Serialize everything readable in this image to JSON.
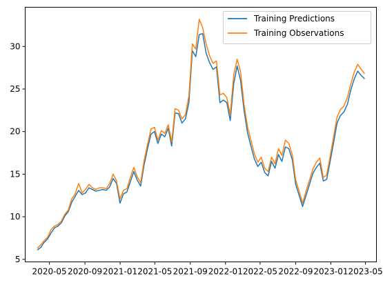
{
  "chart_data": {
    "type": "line",
    "title": "",
    "xlabel": "",
    "ylabel": "",
    "x_ticks": [
      "2020-05",
      "2020-09",
      "2021-01",
      "2021-05",
      "2021-09",
      "2022-01",
      "2022-05",
      "2022-09",
      "2023-01",
      "2023-05"
    ],
    "x_range": [
      "2020-02-07",
      "2023-06-08"
    ],
    "x_start": "2020-03-20",
    "x_end": "2023-04-28",
    "y_ticks": [
      5,
      10,
      15,
      20,
      25,
      30
    ],
    "ylim": [
      4.7,
      34.6
    ],
    "grid": false,
    "legend_position": "top-right",
    "series": [
      {
        "name": "Training Predictions",
        "color": "#1f77b4",
        "values": [
          6.1,
          6.4,
          7.0,
          7.4,
          8.1,
          8.7,
          8.9,
          9.3,
          10.1,
          10.6,
          11.7,
          12.4,
          13.1,
          12.6,
          12.8,
          13.4,
          13.2,
          13.0,
          13.1,
          13.2,
          13.1,
          13.5,
          14.5,
          13.9,
          11.6,
          12.7,
          12.9,
          14.1,
          15.3,
          14.3,
          13.6,
          16.1,
          18.0,
          19.7,
          20.0,
          18.6,
          19.7,
          19.4,
          20.4,
          18.3,
          22.2,
          22.1,
          21.0,
          21.5,
          23.4,
          29.5,
          28.8,
          31.4,
          31.5,
          29.2,
          28.1,
          27.3,
          27.6,
          23.4,
          23.7,
          23.4,
          21.3,
          25.6,
          27.7,
          26.0,
          22.5,
          19.9,
          18.3,
          16.8,
          15.9,
          16.4,
          15.2,
          14.8,
          16.5,
          15.7,
          17.3,
          16.5,
          18.2,
          18.0,
          16.7,
          13.8,
          12.5,
          11.2,
          12.5,
          13.8,
          15.1,
          15.8,
          16.3,
          14.2,
          14.4,
          16.5,
          18.7,
          21.0,
          21.9,
          22.3,
          23.2,
          24.9,
          26.2,
          27.1,
          26.6,
          26.2
        ]
      },
      {
        "name": "Training Observations",
        "color": "#ff7f0e",
        "values": [
          6.3,
          6.7,
          7.2,
          7.6,
          8.5,
          8.9,
          9.1,
          9.5,
          10.3,
          10.8,
          12.1,
          12.7,
          13.9,
          12.8,
          13.2,
          13.8,
          13.4,
          13.2,
          13.4,
          13.4,
          13.3,
          13.9,
          15.0,
          14.2,
          12.1,
          13.1,
          13.3,
          14.6,
          15.8,
          14.7,
          14.0,
          16.6,
          18.5,
          20.3,
          20.5,
          19.0,
          20.1,
          19.8,
          20.8,
          18.8,
          22.7,
          22.5,
          21.5,
          22.0,
          24.2,
          30.3,
          29.7,
          33.2,
          32.2,
          30.3,
          28.9,
          28.0,
          28.3,
          24.3,
          24.5,
          24.0,
          22.0,
          26.6,
          28.5,
          27.0,
          23.2,
          20.6,
          19.0,
          17.4,
          16.4,
          17.0,
          15.7,
          15.3,
          17.0,
          16.2,
          18.0,
          17.2,
          19.0,
          18.6,
          17.3,
          14.3,
          13.0,
          11.6,
          13.0,
          14.3,
          15.6,
          16.4,
          16.9,
          14.6,
          14.9,
          17.1,
          19.4,
          21.7,
          22.6,
          23.0,
          24.0,
          25.6,
          27.0,
          27.9,
          27.3,
          26.8
        ]
      }
    ]
  }
}
